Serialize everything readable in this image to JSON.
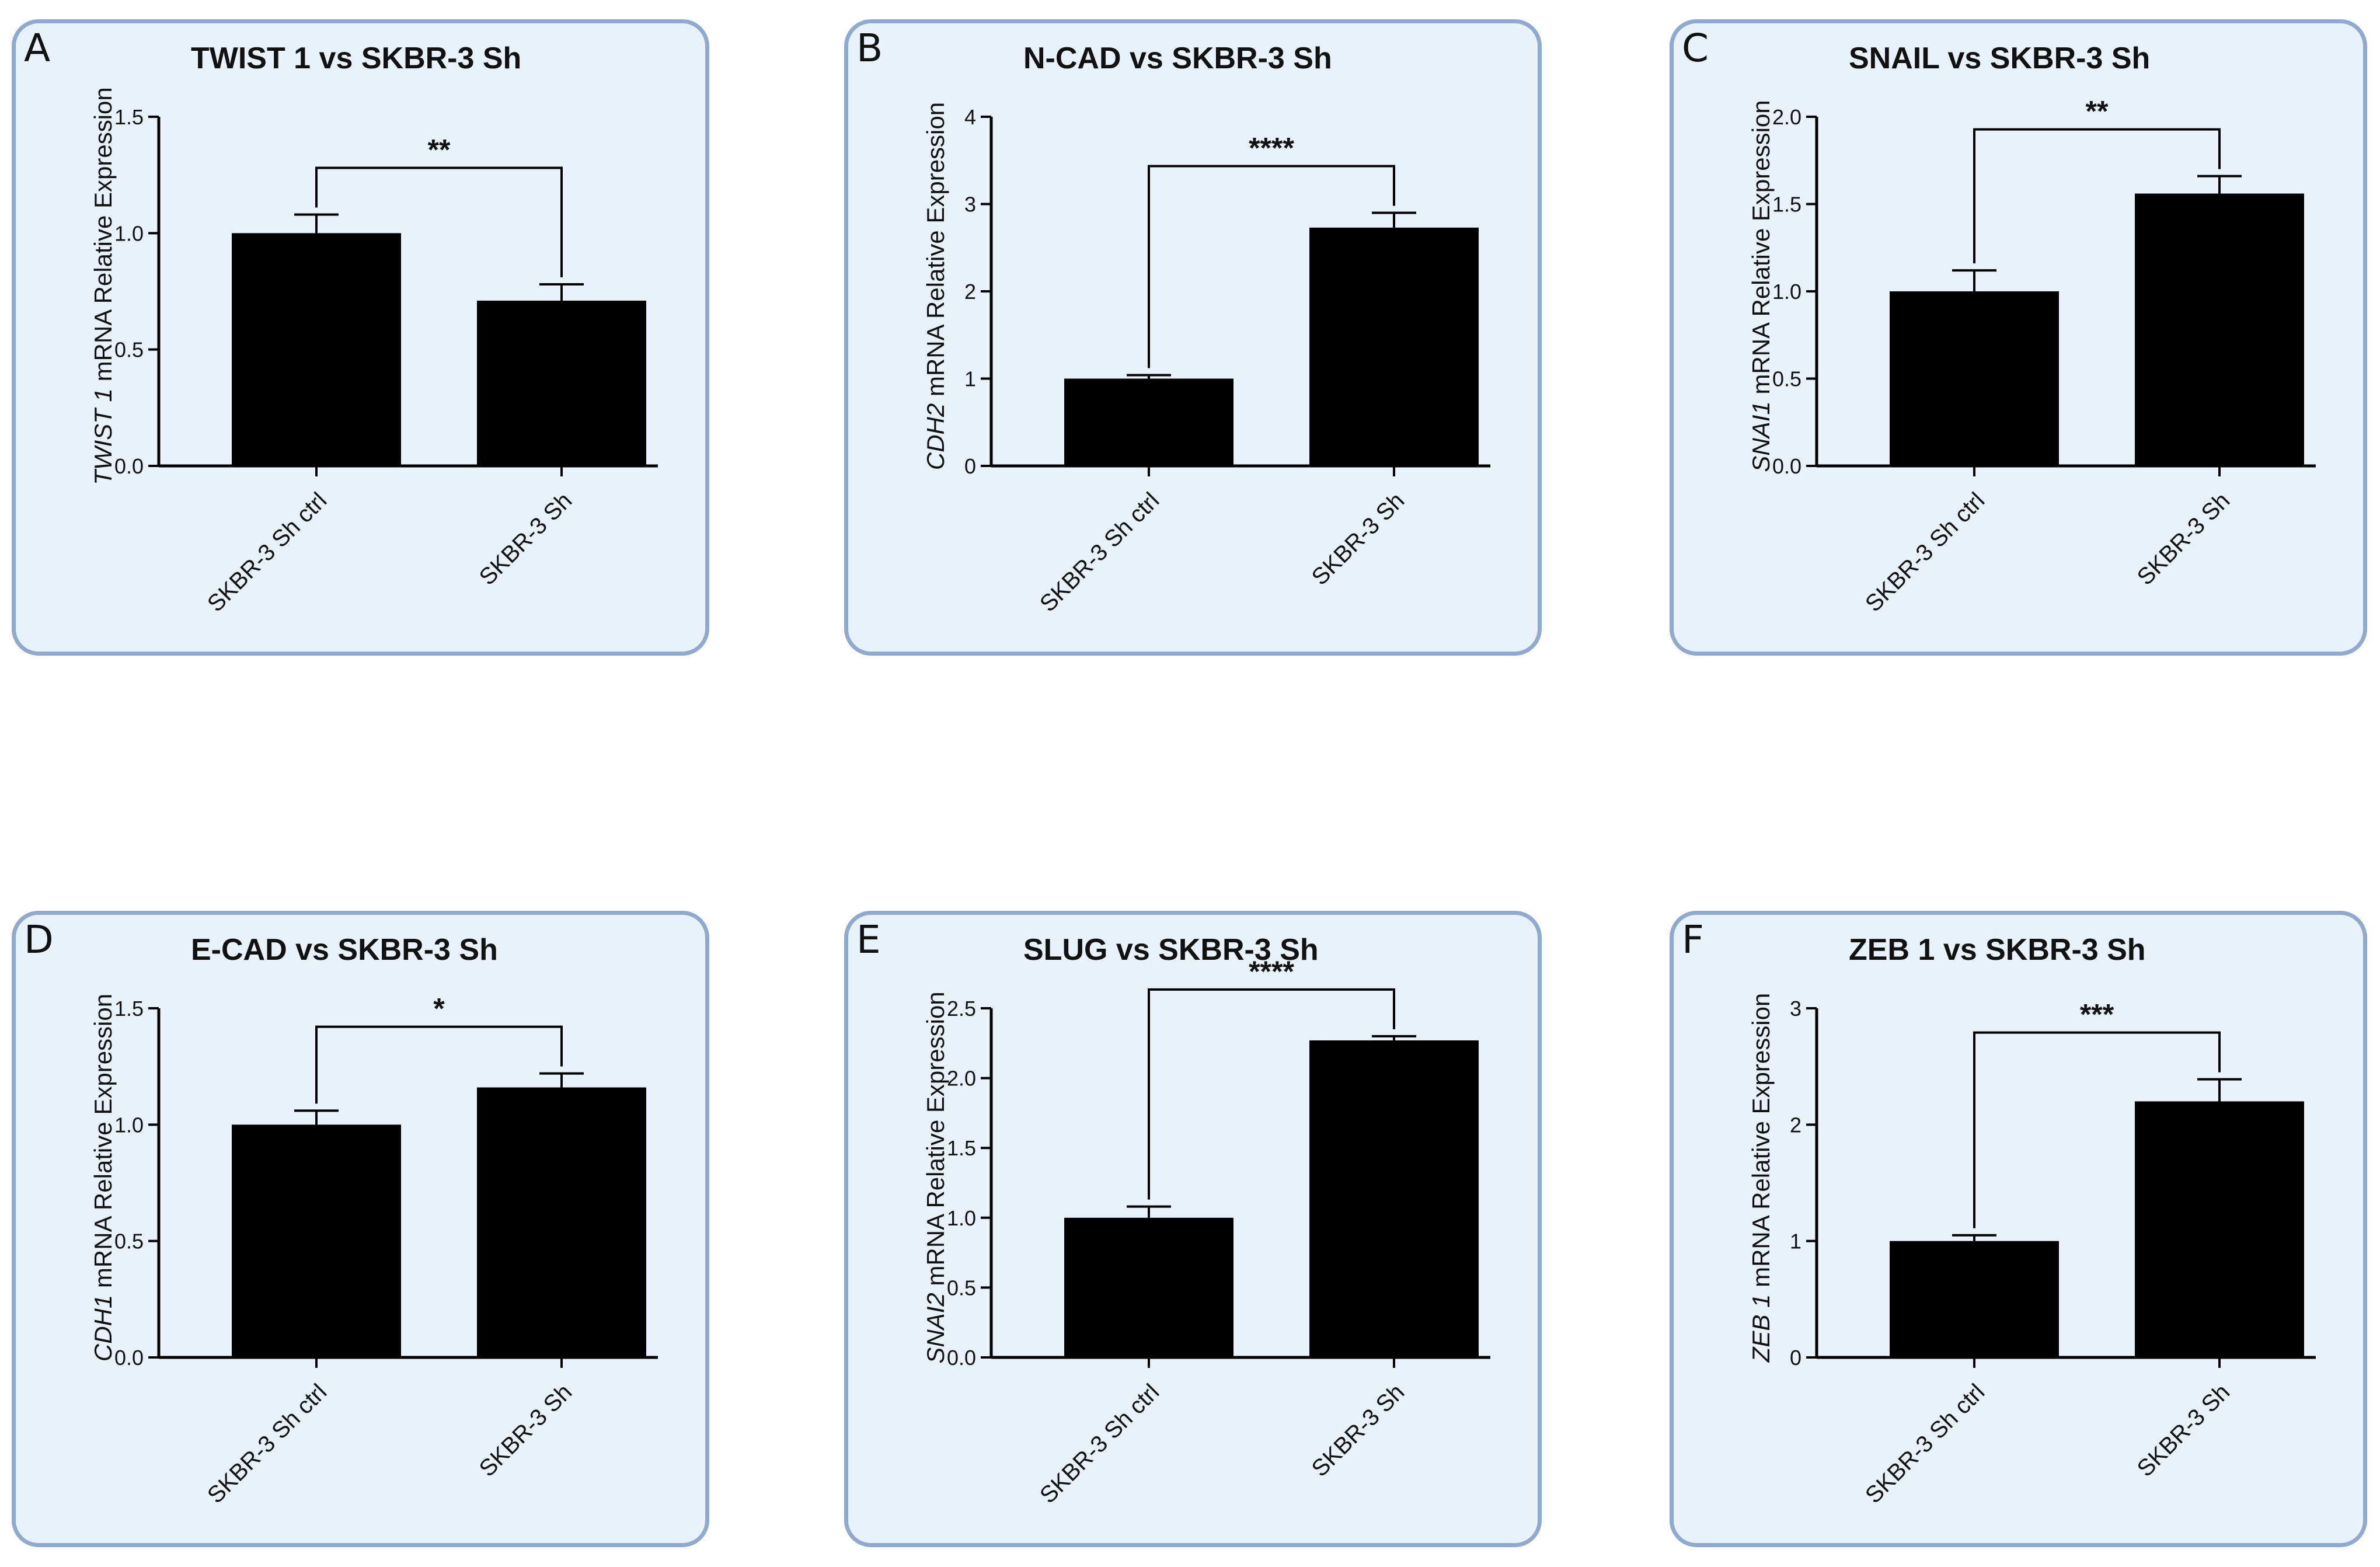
{
  "chart_data": [
    {
      "type": "bar",
      "panel": "A",
      "title": "TWIST 1 vs SKBR-3 Sh",
      "ylabel_gene": "TWIST 1",
      "ylabel_rest": " mRNA Relative Expression",
      "xlabel": "",
      "categories": [
        "SKBR-3 Sh ctrl",
        "SKBR-3 Sh"
      ],
      "values": [
        1.0,
        0.71
      ],
      "errors": [
        0.08,
        0.07
      ],
      "ylim": [
        0,
        1.5
      ],
      "yticks": [
        0.0,
        0.5,
        1.0,
        1.5
      ],
      "ytick_labels": [
        "0.0",
        "0.5",
        "1.0",
        "1.5"
      ],
      "significance": "**"
    },
    {
      "type": "bar",
      "panel": "B",
      "title": "N-CAD vs SKBR-3 Sh",
      "ylabel_gene": "CDH2",
      "ylabel_rest": " mRNA Relative Expression",
      "xlabel": "",
      "categories": [
        "SKBR-3 Sh ctrl",
        "SKBR-3 Sh"
      ],
      "values": [
        1.0,
        2.73
      ],
      "errors": [
        0.04,
        0.17
      ],
      "ylim": [
        0,
        4
      ],
      "yticks": [
        0,
        1,
        2,
        3,
        4
      ],
      "ytick_labels": [
        "0",
        "1",
        "2",
        "3",
        "4"
      ],
      "significance": "****"
    },
    {
      "type": "bar",
      "panel": "C",
      "title": "SNAIL vs SKBR-3 Sh",
      "ylabel_gene": "SNAI1",
      "ylabel_rest": " mRNA Relative Expression",
      "xlabel": "",
      "categories": [
        "SKBR-3 Sh ctrl",
        "SKBR-3 Sh"
      ],
      "values": [
        1.0,
        1.56
      ],
      "errors": [
        0.12,
        0.1
      ],
      "ylim": [
        0,
        2.0
      ],
      "yticks": [
        0.0,
        0.5,
        1.0,
        1.5,
        2.0
      ],
      "ytick_labels": [
        "0.0",
        "0.5",
        "1.0",
        "1.5",
        "2.0"
      ],
      "significance": "**"
    },
    {
      "type": "bar",
      "panel": "D",
      "title": "E-CAD vs SKBR-3 Sh",
      "ylabel_gene": "CDH1",
      "ylabel_rest": " mRNA Relative Expression",
      "xlabel": "",
      "categories": [
        "SKBR-3 Sh ctrl",
        "SKBR-3 Sh"
      ],
      "values": [
        1.0,
        1.16
      ],
      "errors": [
        0.06,
        0.06
      ],
      "ylim": [
        0,
        1.5
      ],
      "yticks": [
        0.0,
        0.5,
        1.0,
        1.5
      ],
      "ytick_labels": [
        "0.0",
        "0.5",
        "1.0",
        "1.5"
      ],
      "significance": "*"
    },
    {
      "type": "bar",
      "panel": "E",
      "title": "SLUG vs SKBR-3 Sh",
      "ylabel_gene": "SNAI2",
      "ylabel_rest": " mRNA Relative Expression",
      "xlabel": "",
      "categories": [
        "SKBR-3 Sh ctrl",
        "SKBR-3 Sh"
      ],
      "values": [
        1.0,
        2.27
      ],
      "errors": [
        0.08,
        0.03
      ],
      "ylim": [
        0,
        2.5
      ],
      "yticks": [
        0.0,
        0.5,
        1.0,
        1.5,
        2.0,
        2.5
      ],
      "ytick_labels": [
        "0.0",
        "0.5",
        "1.0",
        "1.5",
        "2.0",
        "2.5"
      ],
      "significance": "****"
    },
    {
      "type": "bar",
      "panel": "F",
      "title": "ZEB 1 vs SKBR-3 Sh",
      "ylabel_gene": "ZEB 1",
      "ylabel_rest": " mRNA Relative Expression",
      "xlabel": "",
      "categories": [
        "SKBR-3 Sh ctrl",
        "SKBR-3 Sh"
      ],
      "values": [
        1.0,
        2.2
      ],
      "errors": [
        0.05,
        0.19
      ],
      "ylim": [
        0,
        3
      ],
      "yticks": [
        0,
        1,
        2,
        3
      ],
      "ytick_labels": [
        "0",
        "1",
        "2",
        "3"
      ],
      "significance": "***"
    }
  ],
  "colors": {
    "panel_background": "#e9f1fb",
    "panel_border": "#8fa9cf",
    "bar_fill": "#000000",
    "axis": "#000000"
  }
}
